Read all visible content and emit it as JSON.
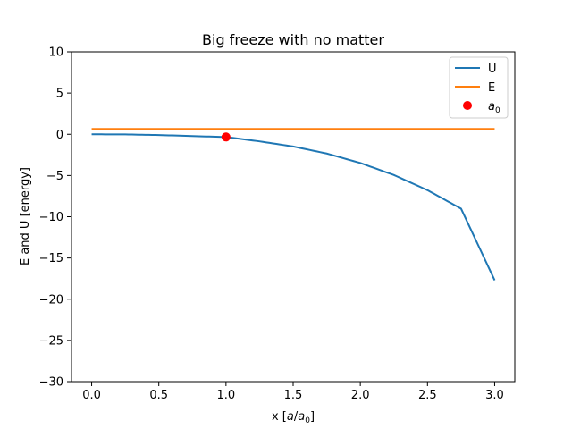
{
  "chart_data": {
    "type": "line",
    "title": "Big freeze with no matter",
    "xlabel": "x [a/a0]",
    "ylabel": "E and U [energy]",
    "xlim": [
      -0.15,
      3.15
    ],
    "ylim": [
      -30,
      10
    ],
    "xticks": [
      0.0,
      0.5,
      1.0,
      1.5,
      2.0,
      2.5,
      3.0
    ],
    "xtick_labels": [
      "0.0",
      "0.5",
      "1.0",
      "1.5",
      "2.0",
      "2.5",
      "3.0"
    ],
    "yticks": [
      -30,
      -25,
      -20,
      -15,
      -10,
      -5,
      0,
      5,
      10
    ],
    "ytick_labels": [
      "−30",
      "−25",
      "−20",
      "−15",
      "−10",
      "−5",
      "0",
      "5",
      "10"
    ],
    "grid": false,
    "legend_position": "top-right",
    "series": [
      {
        "name": "U",
        "kind": "line",
        "color": "#1f77b4",
        "x": [
          0,
          0.25,
          0.5,
          0.75,
          1.0,
          1.25,
          1.5,
          1.75,
          2.0,
          2.25,
          2.5,
          2.75,
          3.0
        ],
        "y": [
          0,
          -0.02,
          -0.09,
          -0.22,
          -0.33,
          -0.86,
          -1.48,
          -2.33,
          -3.48,
          -4.94,
          -6.78,
          -9.02,
          -17.7
        ]
      },
      {
        "name": "E",
        "kind": "line",
        "color": "#ff7f0e",
        "x": [
          0,
          3.0
        ],
        "y": [
          0.65,
          0.65
        ]
      },
      {
        "name": "a0",
        "kind": "point",
        "color": "#ff0000",
        "x": [
          1.0
        ],
        "y": [
          -0.33
        ]
      }
    ]
  }
}
